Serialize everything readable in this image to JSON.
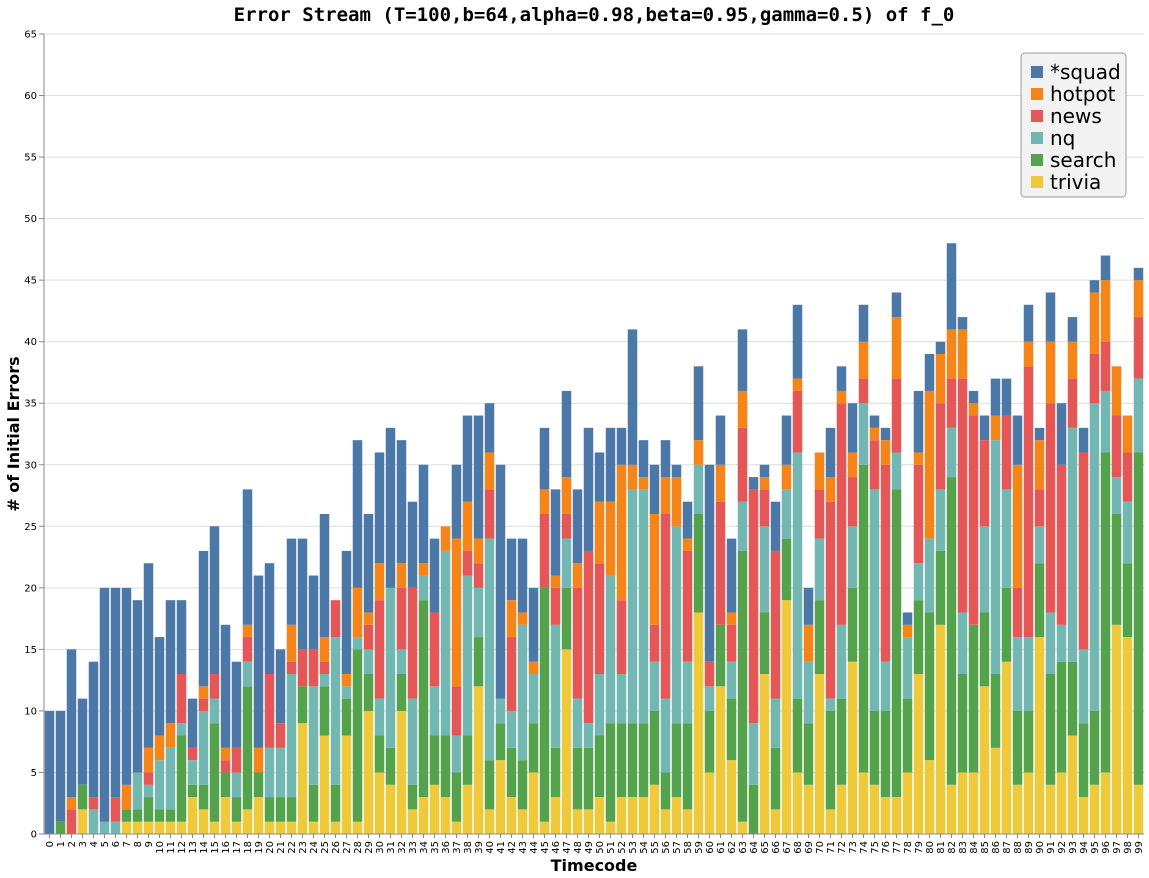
{
  "chart_data": {
    "type": "bar",
    "stacked": true,
    "title": "Error Stream (T=100,b=64,alpha=0.98,beta=0.95,gamma=0.5) of f_0",
    "xlabel": "Timecode",
    "ylabel": "# of Initial Errors",
    "ylim": [
      0,
      65
    ],
    "yticks": [
      0,
      5,
      10,
      15,
      20,
      25,
      30,
      35,
      40,
      45,
      50,
      55,
      60,
      65
    ],
    "grid": true,
    "legend_position": "top-right",
    "categories": [
      "0",
      "1",
      "2",
      "3",
      "4",
      "5",
      "6",
      "7",
      "8",
      "9",
      "10",
      "11",
      "12",
      "13",
      "14",
      "15",
      "16",
      "17",
      "18",
      "19",
      "20",
      "21",
      "22",
      "23",
      "24",
      "25",
      "26",
      "27",
      "28",
      "29",
      "30",
      "31",
      "32",
      "33",
      "34",
      "35",
      "36",
      "37",
      "38",
      "39",
      "40",
      "41",
      "42",
      "43",
      "44",
      "45",
      "46",
      "47",
      "48",
      "49",
      "50",
      "51",
      "52",
      "53",
      "54",
      "55",
      "56",
      "57",
      "58",
      "59",
      "60",
      "61",
      "62",
      "63",
      "64",
      "65",
      "66",
      "67",
      "68",
      "69",
      "70",
      "71",
      "72",
      "73",
      "74",
      "75",
      "76",
      "77",
      "78",
      "79",
      "80",
      "81",
      "82",
      "83",
      "84",
      "85",
      "86",
      "87",
      "88",
      "89",
      "90",
      "91",
      "92",
      "93",
      "94",
      "95",
      "96",
      "97",
      "98",
      "99"
    ],
    "series": [
      {
        "name": "trivia",
        "color": "#eeca3b",
        "values": [
          0,
          0,
          0,
          2,
          0,
          0,
          0,
          1,
          1,
          1,
          1,
          1,
          1,
          3,
          2,
          1,
          3,
          1,
          2,
          3,
          1,
          1,
          1,
          9,
          1,
          8,
          1,
          8,
          1,
          10,
          5,
          4,
          10,
          2,
          3,
          4,
          3,
          1,
          4,
          12,
          2,
          6,
          3,
          2,
          5,
          1,
          3,
          15,
          2,
          2,
          3,
          1,
          3,
          3,
          3,
          4,
          2,
          3,
          2,
          18,
          5,
          12,
          6,
          1,
          0,
          13,
          2,
          19,
          5,
          4,
          13,
          2,
          4,
          14,
          5,
          4,
          3,
          3,
          5,
          13,
          6,
          17,
          4,
          5,
          5,
          12,
          7,
          14,
          4,
          5,
          16,
          4,
          5,
          8,
          3,
          4,
          5,
          17,
          16,
          4
        ]
      },
      {
        "name": "search",
        "color": "#54a24b",
        "values": [
          0,
          1,
          0,
          2,
          0,
          0,
          0,
          1,
          1,
          2,
          1,
          1,
          7,
          1,
          2,
          8,
          2,
          2,
          10,
          2,
          2,
          2,
          2,
          3,
          3,
          4,
          3,
          3,
          14,
          3,
          3,
          3,
          3,
          2,
          16,
          4,
          5,
          4,
          4,
          4,
          4,
          3,
          4,
          4,
          4,
          19,
          4,
          5,
          5,
          5,
          5,
          8,
          6,
          6,
          6,
          6,
          3,
          6,
          7,
          8,
          5,
          5,
          5,
          22,
          4,
          5,
          5,
          5,
          6,
          5,
          6,
          8,
          7,
          6,
          25,
          6,
          7,
          25,
          6,
          6,
          12,
          6,
          25,
          8,
          12,
          6,
          6,
          6,
          6,
          5,
          6,
          9,
          9,
          6,
          6,
          6,
          26,
          9,
          6,
          27
        ]
      },
      {
        "name": "nq",
        "color": "#72b7b2",
        "values": [
          0,
          0,
          0,
          0,
          2,
          1,
          1,
          0,
          3,
          1,
          4,
          5,
          1,
          2,
          6,
          2,
          0,
          2,
          2,
          0,
          4,
          4,
          10,
          0,
          8,
          1,
          12,
          1,
          1,
          2,
          3,
          13,
          2,
          7,
          2,
          4,
          15,
          3,
          13,
          4,
          18,
          2,
          3,
          11,
          4,
          0,
          10,
          4,
          4,
          2,
          5,
          12,
          4,
          19,
          19,
          4,
          6,
          16,
          5,
          4,
          2,
          0,
          3,
          4,
          5,
          7,
          4,
          4,
          20,
          5,
          5,
          1,
          6,
          5,
          5,
          18,
          4,
          3,
          5,
          3,
          6,
          5,
          4,
          5,
          0,
          7,
          19,
          8,
          6,
          6,
          3,
          5,
          3,
          19,
          6,
          25,
          5,
          3,
          5,
          6
        ]
      },
      {
        "name": "news",
        "color": "#e45756",
        "values": [
          0,
          0,
          2,
          0,
          1,
          0,
          2,
          0,
          0,
          1,
          0,
          0,
          4,
          1,
          1,
          2,
          1,
          2,
          2,
          0,
          6,
          2,
          1,
          3,
          3,
          1,
          3,
          0,
          0,
          2,
          8,
          0,
          5,
          9,
          0,
          6,
          0,
          4,
          2,
          2,
          4,
          0,
          6,
          0,
          0,
          6,
          3,
          2,
          9,
          14,
          9,
          0,
          6,
          0,
          0,
          3,
          15,
          0,
          9,
          0,
          2,
          10,
          3,
          6,
          19,
          3,
          12,
          0,
          5,
          0,
          4,
          16,
          18,
          4,
          2,
          4,
          16,
          6,
          0,
          8,
          0,
          7,
          4,
          19,
          17,
          7,
          0,
          6,
          4,
          22,
          3,
          17,
          13,
          4,
          16,
          4,
          4,
          5,
          4,
          5
        ]
      },
      {
        "name": "hotpot",
        "color": "#f58518",
        "values": [
          0,
          0,
          1,
          0,
          0,
          0,
          0,
          2,
          0,
          2,
          2,
          2,
          0,
          0,
          1,
          0,
          1,
          0,
          1,
          2,
          0,
          0,
          3,
          0,
          0,
          2,
          0,
          1,
          4,
          1,
          3,
          0,
          2,
          0,
          1,
          0,
          2,
          12,
          4,
          2,
          3,
          0,
          3,
          1,
          1,
          2,
          1,
          3,
          2,
          0,
          5,
          6,
          11,
          2,
          1,
          9,
          3,
          4,
          1,
          2,
          0,
          3,
          1,
          3,
          0,
          1,
          0,
          2,
          1,
          3,
          3,
          2,
          1,
          2,
          3,
          1,
          2,
          5,
          1,
          1,
          12,
          4,
          4,
          4,
          1,
          0,
          2,
          0,
          10,
          2,
          4,
          5,
          0,
          3,
          0,
          5,
          5,
          4,
          3,
          3
        ]
      },
      {
        "name": "*squad",
        "color": "#4c78a8",
        "values": [
          10,
          9,
          12,
          7,
          11,
          19,
          17,
          16,
          14,
          15,
          8,
          10,
          6,
          4,
          11,
          12,
          10,
          7,
          11,
          14,
          9,
          6,
          7,
          9,
          6,
          10,
          0,
          10,
          12,
          8,
          9,
          13,
          10,
          7,
          8,
          6,
          0,
          6,
          7,
          10,
          4,
          19,
          5,
          6,
          6,
          5,
          7,
          7,
          6,
          10,
          4,
          6,
          3,
          11,
          3,
          4,
          3,
          1,
          3,
          6,
          16,
          4,
          6,
          5,
          1,
          1,
          4,
          4,
          6,
          3,
          0,
          4,
          2,
          4,
          3,
          1,
          1,
          2,
          1,
          5,
          3,
          1,
          7,
          1,
          1,
          2,
          3,
          3,
          4,
          3,
          1,
          4,
          5,
          2,
          2,
          1,
          2,
          0,
          0,
          1
        ]
      }
    ]
  }
}
